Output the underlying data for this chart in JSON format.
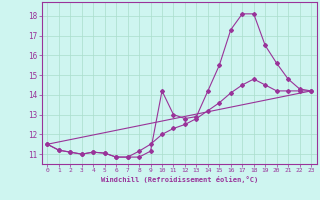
{
  "xlabel": "Windchill (Refroidissement éolien,°C)",
  "background_color": "#cef5f0",
  "grid_color": "#aaddcc",
  "line_color": "#993399",
  "xlim": [
    -0.5,
    23.5
  ],
  "ylim": [
    10.5,
    18.7
  ],
  "xticks": [
    0,
    1,
    2,
    3,
    4,
    5,
    6,
    7,
    8,
    9,
    10,
    11,
    12,
    13,
    14,
    15,
    16,
    17,
    18,
    19,
    20,
    21,
    22,
    23
  ],
  "yticks": [
    11,
    12,
    13,
    14,
    15,
    16,
    17,
    18
  ],
  "line1_x": [
    0,
    1,
    2,
    3,
    4,
    5,
    6,
    7,
    8,
    9,
    10,
    11,
    12,
    13,
    14,
    15,
    16,
    17,
    18,
    19,
    20,
    21,
    22,
    23
  ],
  "line1_y": [
    11.5,
    11.2,
    11.1,
    11.0,
    11.1,
    11.05,
    10.85,
    10.85,
    10.85,
    11.15,
    14.2,
    13.0,
    12.8,
    12.9,
    14.2,
    15.5,
    17.3,
    18.1,
    18.1,
    16.5,
    15.6,
    14.8,
    14.3,
    14.2
  ],
  "line2_x": [
    0,
    1,
    2,
    3,
    4,
    5,
    6,
    7,
    8,
    9,
    10,
    11,
    12,
    13,
    14,
    15,
    16,
    17,
    18,
    19,
    20,
    21,
    22,
    23
  ],
  "line2_y": [
    11.5,
    11.2,
    11.1,
    11.0,
    11.1,
    11.05,
    10.85,
    10.85,
    11.15,
    11.5,
    12.0,
    12.3,
    12.5,
    12.8,
    13.2,
    13.6,
    14.1,
    14.5,
    14.8,
    14.5,
    14.2,
    14.2,
    14.2,
    14.2
  ],
  "line3_x": [
    0,
    23
  ],
  "line3_y": [
    11.5,
    14.2
  ]
}
